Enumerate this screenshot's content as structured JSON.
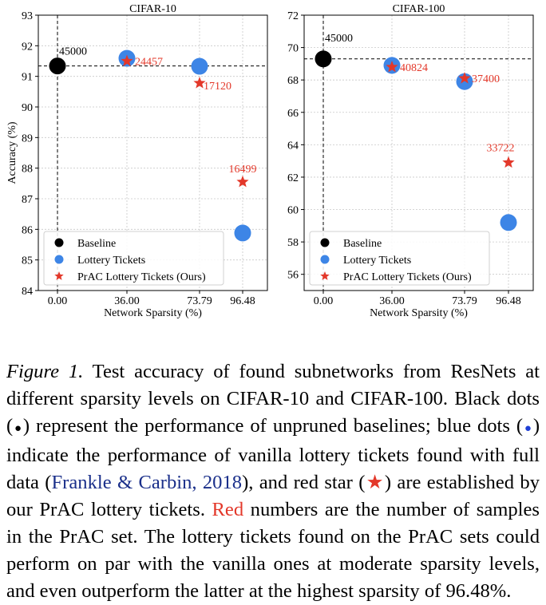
{
  "chart_data": [
    {
      "type": "scatter",
      "title": "CIFAR-10",
      "xlabel": "Network Sparsity (%)",
      "ylabel": "Accuracy (%)",
      "x_ticks": [
        "0.00",
        "36.00",
        "73.79",
        "96.48"
      ],
      "ylim": [
        84,
        93
      ],
      "y_ticks": [
        "84",
        "85",
        "86",
        "87",
        "88",
        "89",
        "90",
        "91",
        "92",
        "93"
      ],
      "grid": true,
      "legend_position": "lower-left",
      "baseline_dashed_line": 91.34,
      "series": [
        {
          "name": "Baseline",
          "color": "#000000",
          "marker": "circle",
          "points": [
            {
              "x": 0.0,
              "y": 91.34,
              "label": "45000"
            }
          ]
        },
        {
          "name": "Lottery Tickets",
          "color": "#3d85e6",
          "marker": "circle",
          "points": [
            {
              "x": 36.0,
              "y": 91.59
            },
            {
              "x": 73.79,
              "y": 91.33
            },
            {
              "x": 96.48,
              "y": 85.88
            }
          ]
        },
        {
          "name": "PrAC Lottery Tickets (Ours)",
          "color": "#e3382a",
          "marker": "star",
          "points": [
            {
              "x": 36.0,
              "y": 91.5,
              "label": "24457"
            },
            {
              "x": 73.79,
              "y": 90.78,
              "label": "17120"
            },
            {
              "x": 96.48,
              "y": 87.55,
              "label": "16499"
            }
          ]
        }
      ]
    },
    {
      "type": "scatter",
      "title": "CIFAR-100",
      "xlabel": "Network Sparsity (%)",
      "ylabel": "",
      "x_ticks": [
        "0.00",
        "36.00",
        "73.79",
        "96.48"
      ],
      "ylim": [
        55,
        72
      ],
      "y_ticks": [
        "56",
        "58",
        "60",
        "62",
        "64",
        "66",
        "68",
        "70",
        "72"
      ],
      "grid": true,
      "legend_position": "lower-left",
      "baseline_dashed_line": 69.3,
      "series": [
        {
          "name": "Baseline",
          "color": "#000000",
          "marker": "circle",
          "points": [
            {
              "x": 0.0,
              "y": 69.3,
              "label": "45000"
            }
          ]
        },
        {
          "name": "Lottery Tickets",
          "color": "#3d85e6",
          "marker": "circle",
          "points": [
            {
              "x": 36.0,
              "y": 68.9
            },
            {
              "x": 73.79,
              "y": 67.9
            },
            {
              "x": 96.48,
              "y": 59.2
            }
          ]
        },
        {
          "name": "PrAC Lottery Tickets (Ours)",
          "color": "#e3382a",
          "marker": "star",
          "points": [
            {
              "x": 36.0,
              "y": 68.8,
              "label": "40824"
            },
            {
              "x": 73.79,
              "y": 68.1,
              "label": "37400"
            },
            {
              "x": 96.48,
              "y": 62.9,
              "label": "33722"
            }
          ]
        }
      ]
    }
  ],
  "caption": {
    "lead": "Figure 1.",
    "part1": " Test accuracy of found subnetworks from ResNets at different sparsity levels on CIFAR-10 and CIFAR-100. Black dots (",
    "black_dot": "●",
    "part2": ") represent the performance of unpruned baselines; blue dots (",
    "blue_dot": "●",
    "part3": ") indicate the performance of vanilla lottery tickets found with full data (",
    "citation": "Frankle & Carbin, 2018",
    "part4": "), and red star (",
    "red_star": "★",
    "part5": ") are established by our PrAC lottery tickets. ",
    "red_word": "Red",
    "part6": " numbers are the number of samples in the PrAC set. The lottery tickets found on the PrAC sets could perform on par with the vanilla ones at moderate sparsity levels, and even outperform the latter at the highest sparsity of 96.48%."
  }
}
